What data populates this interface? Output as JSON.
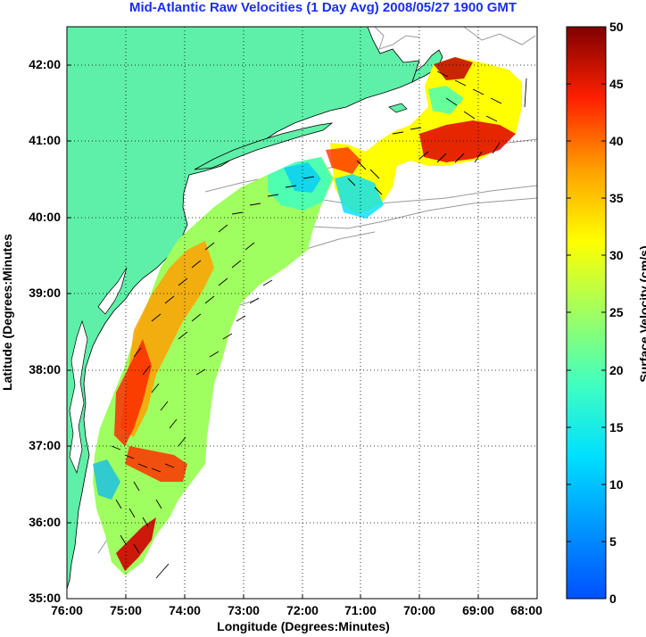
{
  "title": "Mid-Atlantic Raw Velocities (1 Day Avg) 2008/05/27 1900 GMT",
  "xlabel": "Longitude (Degrees:Minutes)",
  "ylabel": "Latitude (Degrees:Minutes",
  "colorbar_label": "Surface Velocity (cm/s)",
  "x_ticks": [
    "76:00",
    "75:00",
    "74:00",
    "73:00",
    "72:00",
    "71:00",
    "70:00",
    "69:00",
    "68:00"
  ],
  "y_ticks": [
    "42:00",
    "41:00",
    "40:00",
    "39:00",
    "38:00",
    "37:00",
    "36:00",
    "35:00"
  ],
  "colorbar_ticks": [
    "50",
    "45",
    "40",
    "35",
    "30",
    "25",
    "20",
    "15",
    "10",
    "5",
    "0"
  ],
  "colors": {
    "land": "#5ef0a8",
    "water": "#ffffff",
    "coastline": "#000000",
    "bathymetry": "#999999",
    "title": "#1b2ff0",
    "grid": "#000000"
  },
  "map": {
    "lon_range": [
      -76.0,
      -68.0
    ],
    "lat_range": [
      35.0,
      42.5
    ],
    "grid": "dotted",
    "colormap": "jet",
    "velocity_range_cm_s": [
      0,
      50
    ],
    "arrows": "black"
  }
}
